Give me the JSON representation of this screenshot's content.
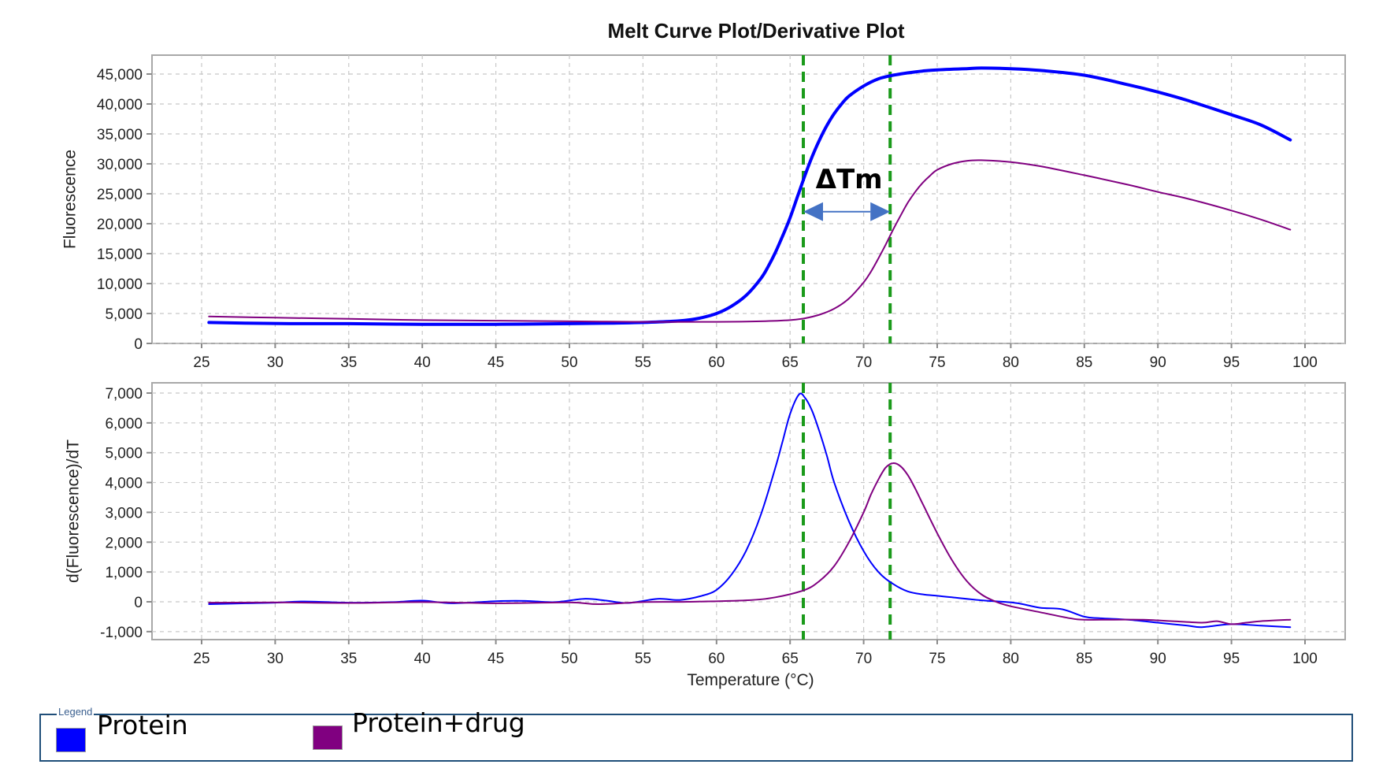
{
  "chart_data": {
    "type": "line",
    "title": "Melt Curve Plot/Derivative Plot",
    "xlabel": "Temperature (°C)",
    "xlim": [
      21.5,
      103
    ],
    "x_ticks": [
      25,
      30,
      35,
      40,
      45,
      50,
      55,
      60,
      65,
      70,
      75,
      80,
      85,
      90,
      95,
      100
    ],
    "grid": true,
    "legend": {
      "title": "Legend",
      "placement": "bottom",
      "entries": [
        {
          "label": "Protein",
          "color": "#0000ff"
        },
        {
          "label": "Protein+drug",
          "color": "#800080"
        }
      ]
    },
    "annotation": {
      "text": "ΔTm",
      "tm_lines": [
        65.9,
        71.8
      ],
      "line_color": "#1a9a1a",
      "arrow_color": "#4472c4",
      "arrow_y_value": 22000
    },
    "panels": [
      {
        "name": "melt-curve",
        "ylabel": "Fluorescence",
        "ylim": [
          0,
          48000
        ],
        "y_ticks": [
          0,
          5000,
          10000,
          15000,
          20000,
          25000,
          30000,
          35000,
          40000,
          45000
        ],
        "y_tick_labels": [
          "0",
          "5,000",
          "10,000",
          "15,000",
          "20,000",
          "25,000",
          "30,000",
          "35,000",
          "40,000",
          "45,000"
        ],
        "series": [
          {
            "name": "Protein",
            "color": "#0000ff",
            "x": [
              25.5,
              28,
              31,
              35,
              40,
              45,
              50,
              53,
              55,
              57,
              58,
              59,
              60,
              61,
              62,
              63,
              63.5,
              64,
              64.5,
              65,
              65.5,
              66,
              66.5,
              67,
              67.5,
              68,
              68.5,
              69,
              70,
              71,
              72,
              73,
              74,
              75,
              77,
              78,
              80,
              82,
              85,
              88,
              90,
              92,
              95,
              97,
              99
            ],
            "y": [
              3500,
              3400,
              3300,
              3300,
              3200,
              3200,
              3300,
              3400,
              3500,
              3700,
              3900,
              4300,
              5000,
              6200,
              8000,
              10800,
              12800,
              15200,
              18000,
              21000,
              24500,
              28000,
              31200,
              34000,
              36400,
              38400,
              40000,
              41300,
              43000,
              44200,
              44800,
              45200,
              45500,
              45700,
              45900,
              46000,
              45900,
              45600,
              44800,
              43200,
              42000,
              40600,
              38200,
              36500,
              34000
            ]
          },
          {
            "name": "Protein+drug",
            "color": "#800080",
            "x": [
              25.5,
              30,
              35,
              40,
              45,
              50,
              55,
              60,
              63,
              65,
              66,
              67,
              68,
              69,
              70,
              70.5,
              71,
              71.5,
              72,
              72.5,
              73,
              73.5,
              74,
              74.5,
              75,
              76,
              77,
              78,
              80,
              82,
              85,
              88,
              90,
              92,
              95,
              97,
              99
            ],
            "y": [
              4500,
              4300,
              4100,
              3900,
              3800,
              3700,
              3600,
              3600,
              3700,
              3900,
              4200,
              4800,
              5800,
              7500,
              10200,
              12000,
              14200,
              16500,
              19000,
              21300,
              23500,
              25300,
              26800,
              28000,
              29000,
              30000,
              30500,
              30600,
              30300,
              29600,
              28100,
              26500,
              25300,
              24200,
              22200,
              20700,
              19000
            ]
          }
        ]
      },
      {
        "name": "derivative",
        "ylabel": "d(Fluorescence)/dT",
        "ylim": [
          -1250,
          7250
        ],
        "y_ticks": [
          -1000,
          0,
          1000,
          2000,
          3000,
          4000,
          5000,
          6000,
          7000
        ],
        "y_tick_labels": [
          "-1,000",
          "0",
          "1,000",
          "2,000",
          "3,000",
          "4,000",
          "5,000",
          "6,000",
          "7,000"
        ],
        "series": [
          {
            "name": "Protein",
            "color": "#0000ff",
            "x": [
              25.5,
              28,
              30,
              32,
              35,
              38,
              40,
              42,
              45,
              47,
              49,
              51,
              52.5,
              54,
              56,
              57.5,
              59,
              60,
              61,
              62,
              63,
              64,
              64.5,
              65,
              65.6,
              66,
              66.5,
              67,
              67.5,
              68,
              69,
              70,
              71,
              72,
              73,
              74,
              75,
              76,
              78,
              79.5,
              80.5,
              82,
              83.5,
              85,
              86,
              88,
              90,
              92,
              93,
              95,
              97,
              99
            ],
            "y": [
              -80,
              -50,
              -30,
              10,
              -30,
              -10,
              40,
              -50,
              20,
              30,
              -10,
              100,
              40,
              -40,
              100,
              60,
              200,
              400,
              900,
              1700,
              2900,
              4500,
              5400,
              6300,
              6950,
              6850,
              6400,
              5700,
              4900,
              4000,
              2700,
              1700,
              1000,
              600,
              350,
              250,
              200,
              150,
              50,
              0,
              -50,
              -200,
              -250,
              -500,
              -550,
              -600,
              -700,
              -800,
              -850,
              -750,
              -800,
              -850
            ]
          },
          {
            "name": "Protein+drug",
            "color": "#800080",
            "x": [
              25.5,
              30,
              35,
              40,
              45,
              50,
              52,
              55,
              58,
              62,
              64,
              66,
              67,
              68,
              69,
              70,
              70.5,
              71,
              71.5,
              72,
              72.5,
              73,
              73.5,
              74,
              75,
              76,
              77,
              78,
              79,
              80,
              82,
              84,
              85,
              87,
              89,
              91,
              93,
              94,
              95,
              96,
              97,
              99
            ],
            "y": [
              -30,
              -20,
              -40,
              -10,
              -50,
              -20,
              -80,
              -10,
              0,
              50,
              150,
              400,
              700,
              1200,
              2000,
              3000,
              3600,
              4100,
              4500,
              4650,
              4550,
              4250,
              3800,
              3300,
              2300,
              1400,
              700,
              250,
              0,
              -150,
              -350,
              -550,
              -600,
              -600,
              -600,
              -650,
              -700,
              -650,
              -750,
              -700,
              -650,
              -600
            ]
          }
        ]
      }
    ]
  }
}
